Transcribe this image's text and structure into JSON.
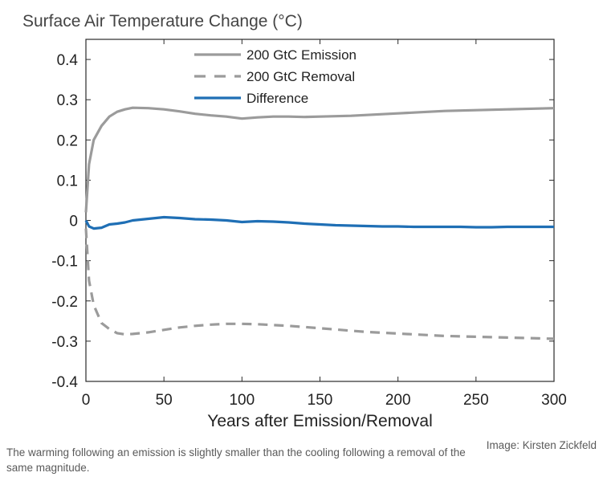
{
  "chart_data": {
    "type": "line",
    "title": "Surface Air Temperature Change (°C)",
    "xlabel": "Years after Emission/Removal",
    "ylabel": "",
    "xlim": [
      0,
      300
    ],
    "ylim": [
      -0.4,
      0.45
    ],
    "x_ticks": [
      "0",
      "50",
      "100",
      "150",
      "200",
      "250",
      "300"
    ],
    "y_ticks": [
      "-0.4",
      "-0.3",
      "-0.2",
      "-0.1",
      "0",
      "0.1",
      "0.2",
      "0.3",
      "0.4"
    ],
    "grid": false,
    "legend_position": "top-center",
    "x": [
      0,
      2,
      5,
      10,
      15,
      20,
      25,
      30,
      40,
      50,
      60,
      70,
      80,
      90,
      100,
      110,
      120,
      130,
      140,
      150,
      160,
      170,
      180,
      190,
      200,
      210,
      220,
      230,
      240,
      250,
      260,
      270,
      280,
      290,
      300
    ],
    "series": [
      {
        "name": "200 GtC Emission",
        "style": "solid",
        "color": "#9b9b9b",
        "values": [
          0.02,
          0.14,
          0.2,
          0.235,
          0.258,
          0.27,
          0.276,
          0.28,
          0.279,
          0.276,
          0.271,
          0.265,
          0.261,
          0.258,
          0.253,
          0.256,
          0.258,
          0.258,
          0.257,
          0.258,
          0.259,
          0.26,
          0.262,
          0.264,
          0.266,
          0.268,
          0.27,
          0.272,
          0.273,
          0.274,
          0.275,
          0.276,
          0.277,
          0.278,
          0.279
        ]
      },
      {
        "name": "200 GtC Removal",
        "style": "dashed",
        "color": "#9b9b9b",
        "values": [
          -0.02,
          -0.15,
          -0.21,
          -0.255,
          -0.27,
          -0.28,
          -0.283,
          -0.282,
          -0.278,
          -0.272,
          -0.266,
          -0.262,
          -0.259,
          -0.257,
          -0.257,
          -0.258,
          -0.26,
          -0.262,
          -0.265,
          -0.268,
          -0.271,
          -0.274,
          -0.277,
          -0.279,
          -0.281,
          -0.283,
          -0.285,
          -0.287,
          -0.288,
          -0.289,
          -0.29,
          -0.291,
          -0.292,
          -0.293,
          -0.294
        ]
      },
      {
        "name": "Difference",
        "style": "solid",
        "color": "#1f6fb5",
        "values": [
          0.0,
          -0.015,
          -0.02,
          -0.018,
          -0.01,
          -0.008,
          -0.005,
          0.0,
          0.004,
          0.008,
          0.006,
          0.003,
          0.002,
          0.0,
          -0.004,
          -0.002,
          -0.003,
          -0.005,
          -0.008,
          -0.01,
          -0.012,
          -0.013,
          -0.014,
          -0.015,
          -0.015,
          -0.016,
          -0.016,
          -0.016,
          -0.016,
          -0.017,
          -0.017,
          -0.016,
          -0.016,
          -0.016,
          -0.016
        ]
      }
    ]
  },
  "caption": "The warming following an emission is slightly smaller than the cooling following a removal of the same magnitude.",
  "credit": "Image: Kirsten Zickfeld"
}
